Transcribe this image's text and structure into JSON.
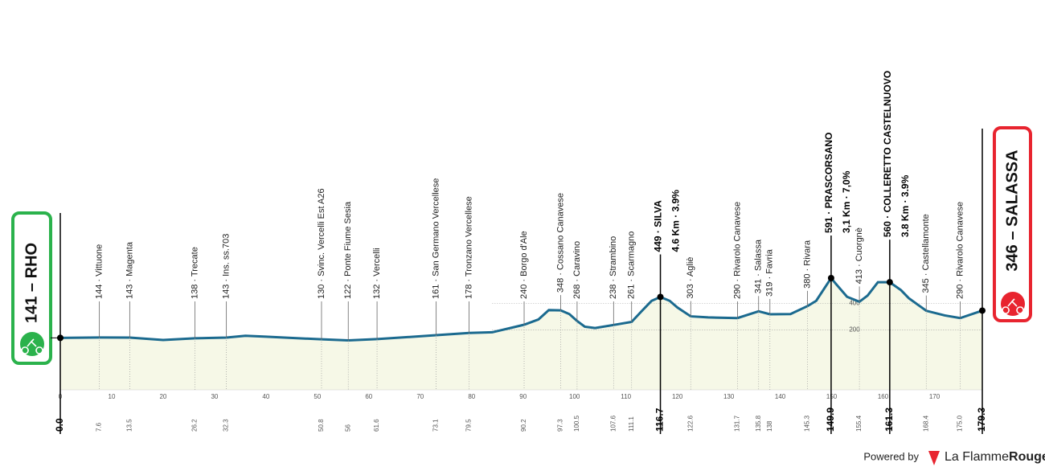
{
  "chart_data": {
    "type": "profile",
    "start": {
      "km": {
        "value": 0,
        "label": "0.0"
      },
      "label": "141 – RHO"
    },
    "finish": {
      "km": 179.3,
      "label": "346 – SALASSA"
    },
    "x": [
      0,
      7.6,
      13.5,
      20,
      26.2,
      32.3,
      36,
      40,
      50.8,
      56,
      61.6,
      73.1,
      79.5,
      84,
      90.2,
      93,
      95,
      97.3,
      99,
      100.5,
      102,
      104,
      107.6,
      111.1,
      113,
      115,
      116.7,
      118.5,
      120,
      122.6,
      126,
      131.7,
      135.8,
      138,
      142,
      145.3,
      147,
      149.9,
      151,
      153,
      155.4,
      157,
      159,
      161.3,
      163.5,
      165,
      168.4,
      172,
      175,
      179.3
    ],
    "values": [
      141,
      144,
      143,
      125,
      138,
      143,
      157,
      150,
      130,
      122,
      132,
      161,
      178,
      183,
      240,
      280,
      350,
      348,
      320,
      268,
      225,
      215,
      238,
      261,
      340,
      420,
      449,
      420,
      370,
      303,
      295,
      290,
      341,
      319,
      320,
      380,
      420,
      591,
      540,
      450,
      413,
      460,
      560,
      560,
      500,
      440,
      345,
      310,
      290,
      346
    ],
    "color": "#1b6a8f",
    "fill": "#f6f8e7",
    "xlim": [
      0,
      179.3
    ],
    "xticks": [
      0,
      10,
      20,
      30,
      40,
      50,
      60,
      70,
      80,
      90,
      100,
      110,
      120,
      130,
      140,
      150,
      160,
      170
    ],
    "ylim": [
      -250,
      2200
    ],
    "yticks": [
      200,
      400
    ],
    "waypoints": [
      {
        "km": 7.6,
        "label": "144 · Vittuone"
      },
      {
        "km": 13.5,
        "label": "143 · Magenta"
      },
      {
        "km": 26.2,
        "label": "138 · Trecate"
      },
      {
        "km": 32.3,
        "label": "143 · Ins. ss.703"
      },
      {
        "km": 50.8,
        "label": "130 · Svinc. Vercelli Est A26"
      },
      {
        "km": 56.0,
        "label": "122 · Ponte Fiume Sesia"
      },
      {
        "km": 61.6,
        "label": "132 · Vercelli"
      },
      {
        "km": 73.1,
        "label": "161 · San Germano Vercellese"
      },
      {
        "km": 79.5,
        "label": "178 · Tronzano Vercellese"
      },
      {
        "km": 90.2,
        "label": "240 · Borgo d'Ale"
      },
      {
        "km": 97.3,
        "label": "348 · Cossano Canavese"
      },
      {
        "km": 100.5,
        "label": "268 · Caravino"
      },
      {
        "km": 107.6,
        "label": "238 · Strambino"
      },
      {
        "km": 111.1,
        "label": "261 · Scarmagno"
      },
      {
        "km": 122.6,
        "label": "303 · Agliè"
      },
      {
        "km": 131.7,
        "label": "290 · Rivarolo Canavese"
      },
      {
        "km": 135.8,
        "label": "341 · Salassa"
      },
      {
        "km": 138.0,
        "label": "319 · Favria"
      },
      {
        "km": 145.3,
        "label": "380 · Rivara"
      },
      {
        "km": 155.4,
        "label": "413 · Cuorgnè"
      },
      {
        "km": 168.4,
        "label": "345 · Castellamonte"
      },
      {
        "km": {
          "value": 175,
          "label": "175.0"
        },
        "label": "290 · Rivarolo Canavese"
      }
    ],
    "climbs": [
      {
        "km": 116.7,
        "label": "449 · SILVA",
        "detail": "4.6 Km · 3.9%"
      },
      {
        "km": 149.9,
        "label": "591 · PRASCORSANO",
        "detail": "3,1 Km · 7,0%"
      },
      {
        "km": 161.3,
        "label": "560 · COLLERETTO CASTELNUOVO",
        "detail": "3.8 Km · 3.9%"
      }
    ],
    "footer": {
      "powered": "Powered by",
      "brand": "La Flamme",
      "brand_accent": "Rouge"
    }
  }
}
